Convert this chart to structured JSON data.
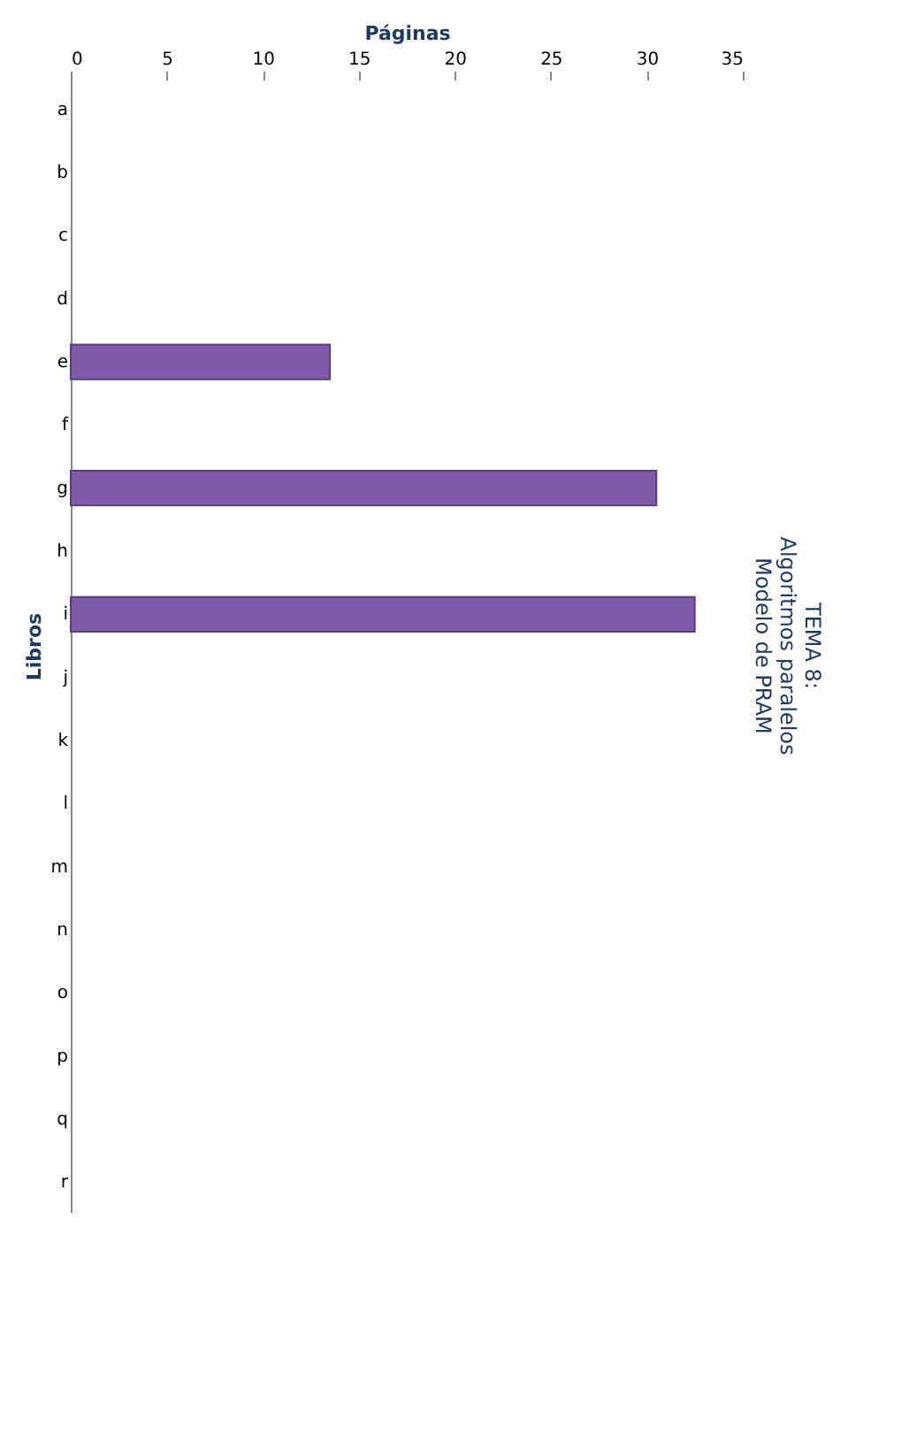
{
  "chart_data": {
    "type": "bar",
    "orientation": "horizontal",
    "title": [
      "TEMA 8:",
      "Algoritmos paralelos",
      "Modelo de PRAM"
    ],
    "xlabel": "Páginas",
    "ylabel": "Libros",
    "categories": [
      "a",
      "b",
      "c",
      "d",
      "e",
      "f",
      "g",
      "h",
      "i",
      "j",
      "k",
      "l",
      "m",
      "n",
      "o",
      "p",
      "q",
      "r"
    ],
    "values": [
      null,
      null,
      null,
      null,
      13.5,
      null,
      30.5,
      null,
      32.5,
      null,
      null,
      null,
      null,
      null,
      null,
      null,
      null,
      null
    ],
    "color": "#7e5aa8",
    "xlim": [
      0,
      35
    ],
    "xticks": [
      0,
      5,
      10,
      15,
      20,
      25,
      30,
      35
    ],
    "grid": false
  }
}
